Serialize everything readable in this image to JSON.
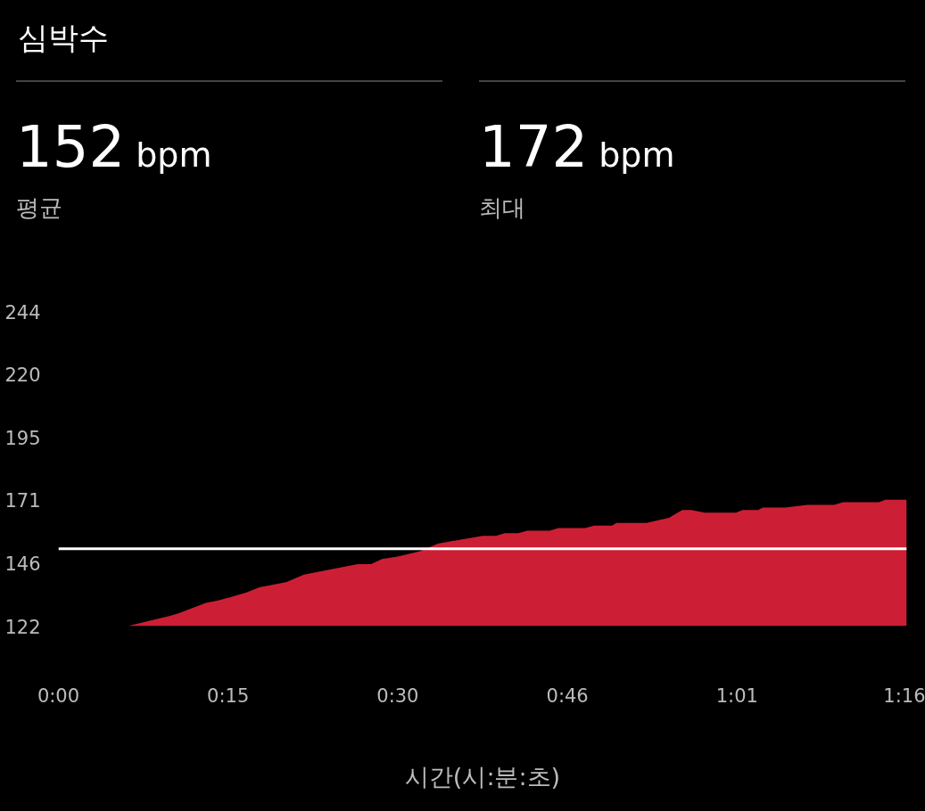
{
  "chart_data": {
    "type": "area",
    "title": "심박수",
    "annotations": [
      "152 bpm",
      "평균",
      "172 bpm",
      "최대"
    ],
    "xlabel": "시간(시:분:초)",
    "x": [
      6.2,
      10.0,
      10.8,
      12.0,
      13.2,
      14.4,
      16.8,
      18.0,
      20.4,
      22.0,
      26.8,
      28.0,
      29.0,
      30.4,
      32.4,
      34.0,
      38.0,
      39.2,
      40.0,
      41.2,
      42.0,
      44.0,
      44.8,
      47.2,
      48.0,
      49.6,
      50.0,
      52.7,
      54.7,
      55.9,
      56.7,
      57.9,
      60.7,
      61.3,
      62.7,
      63.1,
      65.1,
      67.1,
      69.5,
      70.3,
      73.5,
      74.1,
      76.0
    ],
    "series": [
      {
        "color": "#cc1f35",
        "values": [
          122,
          126,
          127,
          129,
          131,
          132,
          135,
          137,
          139,
          142,
          146,
          146,
          148,
          149,
          151,
          154,
          157,
          157,
          158,
          158,
          159,
          159,
          160,
          160,
          161,
          161,
          162,
          162,
          164,
          167,
          167,
          166,
          166,
          167,
          167,
          168,
          168,
          169,
          169,
          170,
          170,
          171,
          171
        ]
      }
    ],
    "xlim": [
      0,
      76
    ],
    "ylim": [
      122,
      244
    ],
    "xticks": [
      {
        "value": 0,
        "label": "0:00"
      },
      {
        "value": 15.2,
        "label": "0:15"
      },
      {
        "value": 30.4,
        "label": "0:30"
      },
      {
        "value": 45.6,
        "label": "0:46"
      },
      {
        "value": 60.8,
        "label": "1:01"
      },
      {
        "value": 76,
        "label": "1:16"
      }
    ],
    "yticks": [
      122,
      {
        "value": 146.4,
        "label": "146"
      },
      {
        "value": 170.8,
        "label": "171"
      },
      {
        "value": 195.2,
        "label": "195"
      },
      {
        "value": 219.6,
        "label": "220"
      },
      244
    ],
    "ref_lines": [
      {
        "axis": "y",
        "value": 152,
        "color": "#ffffff"
      }
    ],
    "grid": false
  }
}
